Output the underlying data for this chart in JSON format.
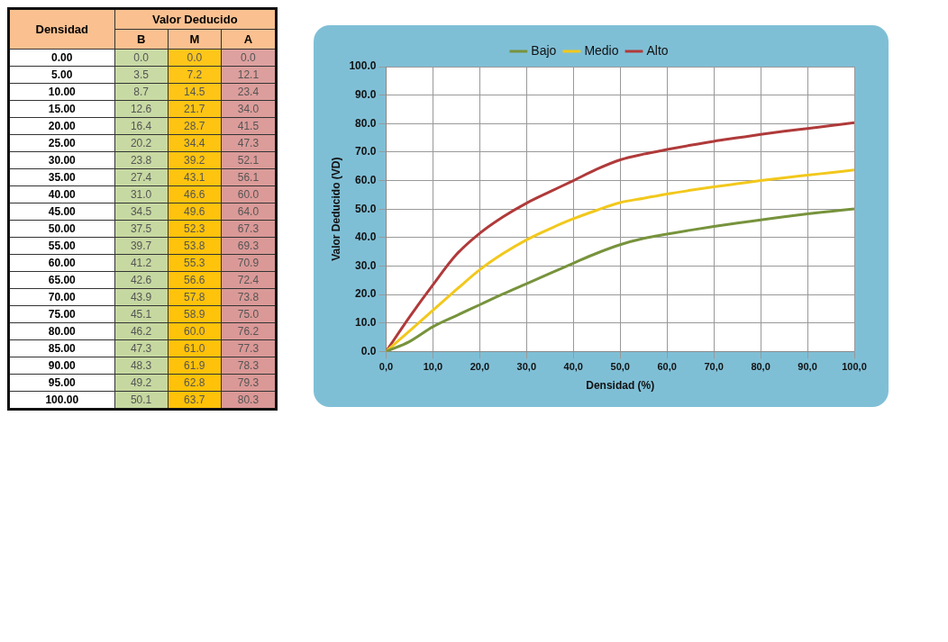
{
  "chart_data": [
    {
      "type": "heatmap",
      "title": "Valor Deducido",
      "ylabel": "Densidad",
      "categories": [
        "B",
        "M",
        "A"
      ],
      "colors": [
        "#c3d69b",
        "#ffc000",
        "#d99694"
      ],
      "cell_labels": [
        [
          "0.0",
          "0.0",
          "0.0"
        ],
        [
          "3.5",
          "7.2",
          "12.1"
        ],
        [
          "8.7",
          "14.5",
          "23.4"
        ],
        [
          "12.6",
          "21.7",
          "34.0"
        ],
        [
          "16.4",
          "28.7",
          "41.5"
        ],
        [
          "20.2",
          "34.4",
          "47.3"
        ],
        [
          "23.8",
          "39.2",
          "52.1"
        ],
        [
          "27.4",
          "43.1",
          "56.1"
        ],
        [
          "31.0",
          "46.6",
          "60.0"
        ],
        [
          "34.5",
          "49.6",
          "64.0"
        ],
        [
          "37.5",
          "52.3",
          "67.3"
        ],
        [
          "39.7",
          "53.8",
          "69.3"
        ],
        [
          "41.2",
          "55.3",
          "70.9"
        ],
        [
          "42.6",
          "56.6",
          "72.4"
        ],
        [
          "43.9",
          "57.8",
          "73.8"
        ],
        [
          "45.1",
          "58.9",
          "75.0"
        ],
        [
          "46.2",
          "60.0",
          "76.2"
        ],
        [
          "47.3",
          "61.0",
          "77.3"
        ],
        [
          "48.3",
          "61.9",
          "78.3"
        ],
        [
          "49.2",
          "62.8",
          "79.3"
        ],
        [
          "50.1",
          "63.7",
          "80.3"
        ]
      ],
      "y_categories": [
        "0.00",
        "5.00",
        "10.00",
        "15.00",
        "20.00",
        "25.00",
        "30.00",
        "35.00",
        "40.00",
        "45.00",
        "50.00",
        "55.00",
        "60.00",
        "65.00",
        "70.00",
        "75.00",
        "80.00",
        "85.00",
        "90.00",
        "95.00",
        "100.00"
      ],
      "cells": [
        [
          0.0,
          0.0,
          0.0
        ],
        [
          3.5,
          7.2,
          12.1
        ],
        [
          8.7,
          14.5,
          23.4
        ],
        [
          12.6,
          21.7,
          34.0
        ],
        [
          16.4,
          28.7,
          41.5
        ],
        [
          20.2,
          34.4,
          47.3
        ],
        [
          23.8,
          39.2,
          52.1
        ],
        [
          27.4,
          43.1,
          56.1
        ],
        [
          31.0,
          46.6,
          60.0
        ],
        [
          34.5,
          49.6,
          64.0
        ],
        [
          37.5,
          52.3,
          67.3
        ],
        [
          39.7,
          53.8,
          69.3
        ],
        [
          41.2,
          55.3,
          70.9
        ],
        [
          42.6,
          56.6,
          72.4
        ],
        [
          43.9,
          57.8,
          73.8
        ],
        [
          45.1,
          58.9,
          75.0
        ],
        [
          46.2,
          60.0,
          76.2
        ],
        [
          47.3,
          61.0,
          77.3
        ],
        [
          48.3,
          61.9,
          78.3
        ],
        [
          49.2,
          62.8,
          79.3
        ],
        [
          50.1,
          63.7,
          80.3
        ]
      ]
    },
    {
      "type": "line",
      "xlabel": "Densidad (%)",
      "ylabel": "Valor Deducido (VD)",
      "x": [
        0,
        5,
        10,
        15,
        20,
        25,
        30,
        35,
        40,
        45,
        50,
        55,
        60,
        65,
        70,
        75,
        80,
        85,
        90,
        95,
        100
      ],
      "series": [
        {
          "name": "Bajo",
          "color": "#77933c",
          "values": [
            0.0,
            3.5,
            8.7,
            12.6,
            16.4,
            20.2,
            23.8,
            27.4,
            31.0,
            34.5,
            37.5,
            39.7,
            41.2,
            42.6,
            43.9,
            45.1,
            46.2,
            47.3,
            48.3,
            49.2,
            50.1
          ]
        },
        {
          "name": "Medio",
          "color": "#f2c81c",
          "values": [
            0.0,
            7.2,
            14.5,
            21.7,
            28.7,
            34.4,
            39.2,
            43.1,
            46.6,
            49.6,
            52.3,
            53.8,
            55.3,
            56.6,
            57.8,
            58.9,
            60.0,
            61.0,
            61.9,
            62.8,
            63.7
          ]
        },
        {
          "name": "Alto",
          "color": "#b03a3a",
          "values": [
            0.0,
            12.1,
            23.4,
            34.0,
            41.5,
            47.3,
            52.1,
            56.1,
            60.0,
            64.0,
            67.3,
            69.3,
            70.9,
            72.4,
            73.8,
            75.0,
            76.2,
            77.3,
            78.3,
            79.3,
            80.3
          ]
        }
      ],
      "xlim": [
        0,
        100
      ],
      "xticks": [
        {
          "value": 0,
          "label": "0,0"
        },
        {
          "value": 10,
          "label": "10,0"
        },
        {
          "value": 20,
          "label": "20,0"
        },
        {
          "value": 30,
          "label": "30,0"
        },
        {
          "value": 40,
          "label": "40,0"
        },
        {
          "value": 50,
          "label": "50,0"
        },
        {
          "value": 60,
          "label": "60,0"
        },
        {
          "value": 70,
          "label": "70,0"
        },
        {
          "value": 80,
          "label": "80,0"
        },
        {
          "value": 90,
          "label": "90,0"
        },
        {
          "value": 100,
          "label": "100,0"
        }
      ],
      "ylim": [
        0,
        100
      ],
      "yticks": [
        {
          "value": 0,
          "label": "0.0"
        },
        {
          "value": 10,
          "label": "10.0"
        },
        {
          "value": 20,
          "label": "20.0"
        },
        {
          "value": 30,
          "label": "30.0"
        },
        {
          "value": 40,
          "label": "40.0"
        },
        {
          "value": 50,
          "label": "50.0"
        },
        {
          "value": 60,
          "label": "60.0"
        },
        {
          "value": 70,
          "label": "70.0"
        },
        {
          "value": 80,
          "label": "80.0"
        },
        {
          "value": 90,
          "label": "90.0"
        },
        {
          "value": 100,
          "label": "100.0"
        }
      ],
      "grid": true,
      "legend": "top",
      "marker": "none",
      "line_style": "solid"
    }
  ]
}
